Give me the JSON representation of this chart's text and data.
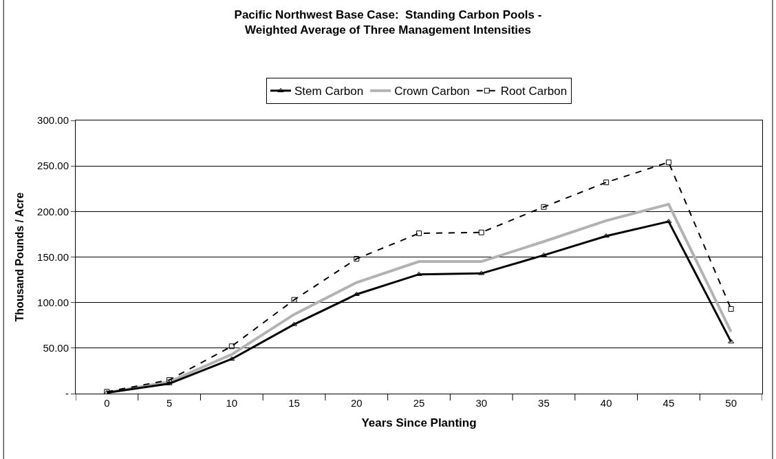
{
  "chart_data": {
    "type": "line",
    "title": "Pacific Northwest Base Case:  Standing Carbon Pools -\nWeighted Average of Three Management Intensities",
    "xlabel": "Years Since Planting",
    "ylabel": "Thousand Pounds / Acre",
    "categories": [
      "0",
      "5",
      "10",
      "15",
      "20",
      "25",
      "30",
      "35",
      "40",
      "45",
      "50"
    ],
    "series": [
      {
        "name": "Stem Carbon",
        "color": "#000000",
        "marker": "triangle",
        "line_style": "solid",
        "values": [
          1,
          11,
          38,
          76,
          109,
          131,
          132,
          152,
          173,
          189,
          57
        ]
      },
      {
        "name": "Crown Carbon",
        "color": "#b2b2b2",
        "marker": "none",
        "line_style": "solid",
        "values": [
          1,
          13,
          43,
          87,
          122,
          145,
          145,
          167,
          190,
          208,
          68
        ]
      },
      {
        "name": "Root Carbon",
        "color": "#000000",
        "marker": "square",
        "line_style": "dashed",
        "values": [
          2,
          15,
          52,
          103,
          148,
          176,
          177,
          205,
          232,
          254,
          93
        ]
      }
    ],
    "ylim": [
      0,
      300
    ],
    "yticks": [
      {
        "value": 0,
        "label": "-"
      },
      {
        "value": 50,
        "label": "50.00"
      },
      {
        "value": 100,
        "label": "100.00"
      },
      {
        "value": 150,
        "label": "150.00"
      },
      {
        "value": 200,
        "label": "200.00"
      },
      {
        "value": 250,
        "label": "250.00"
      },
      {
        "value": 300,
        "label": "300.00"
      }
    ],
    "grid": "y",
    "legend": "top"
  }
}
